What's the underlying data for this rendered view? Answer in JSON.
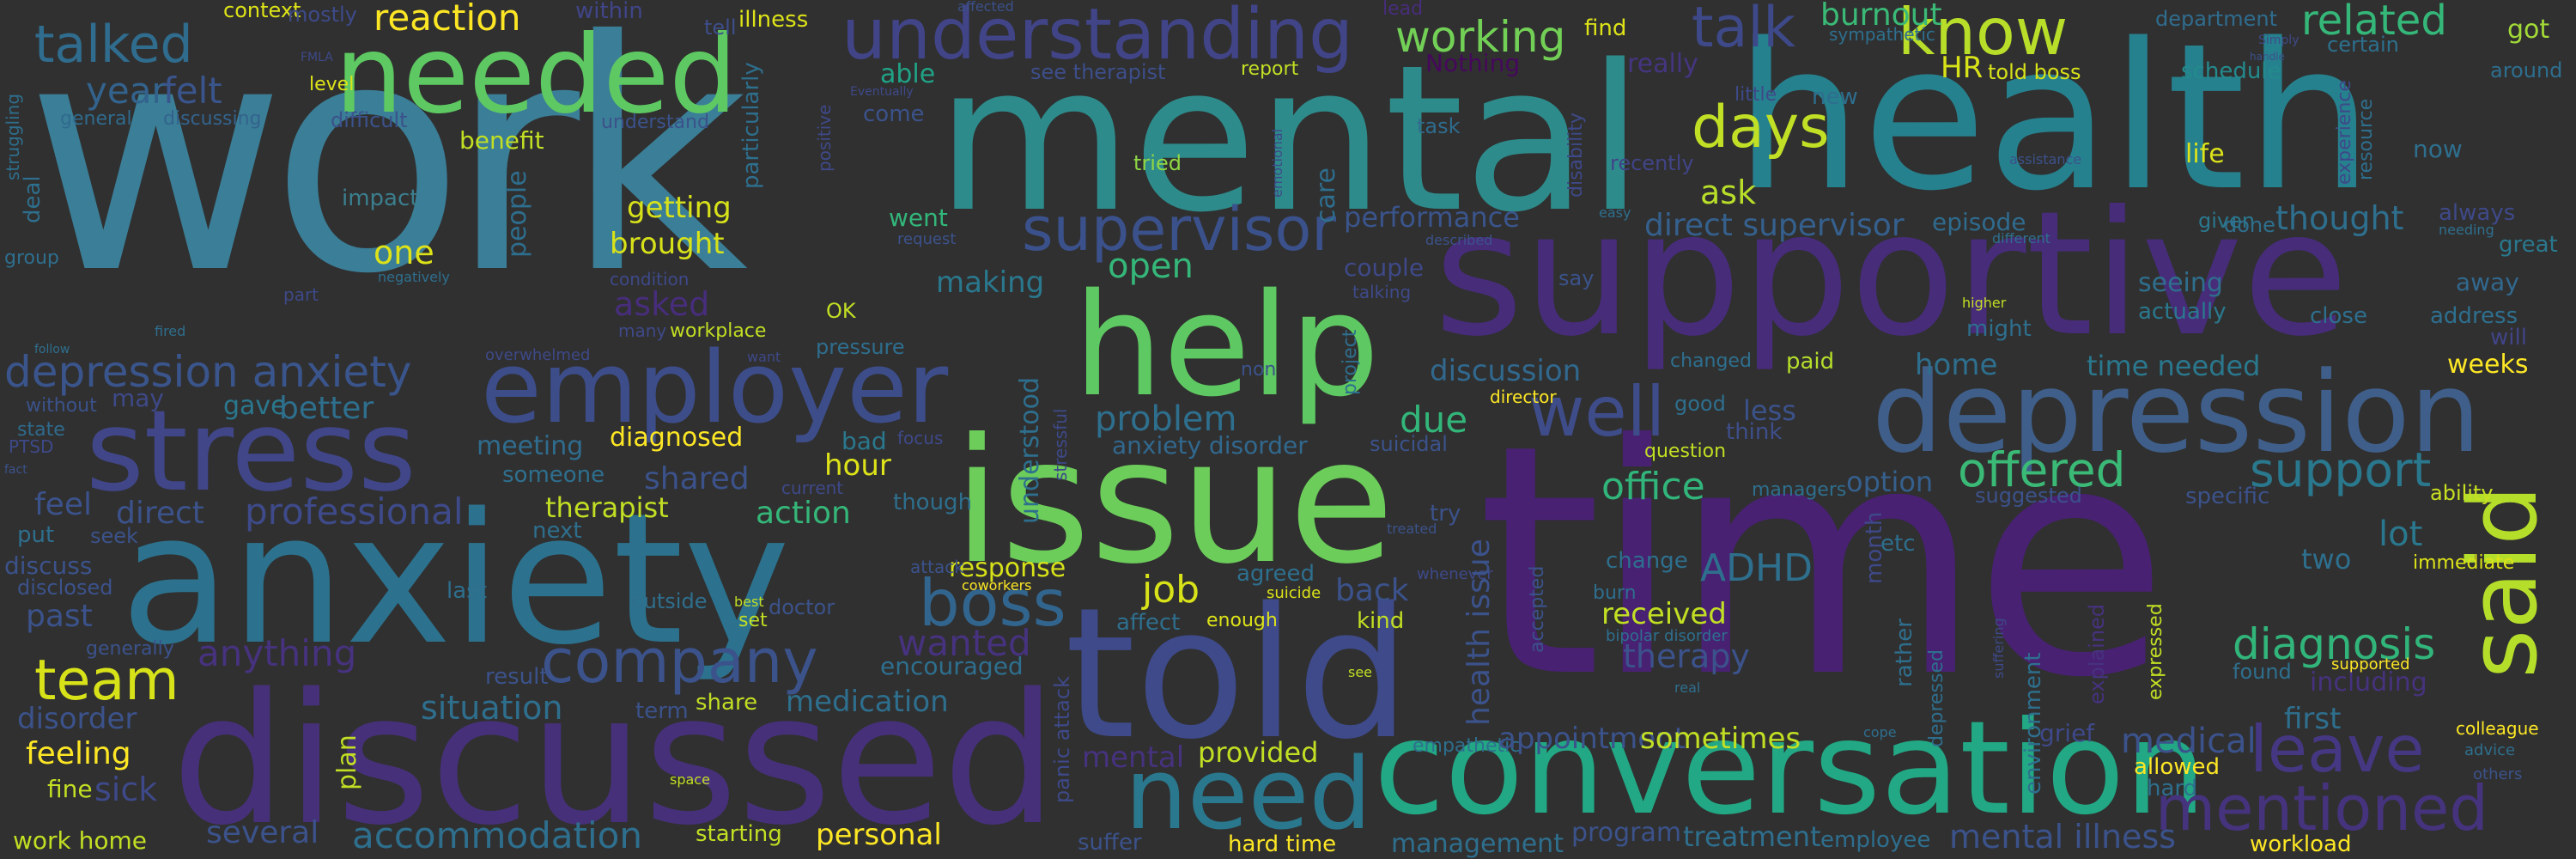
{
  "word_cloud": {
    "background": "#303030",
    "words": [
      {
        "text": "work",
        "color": "#3b7e97"
      },
      {
        "text": "mental",
        "color": "#2e8b8b"
      },
      {
        "text": "health",
        "color": "#26818e"
      },
      {
        "text": "time",
        "color": "#482173"
      },
      {
        "text": "supportive",
        "color": "#472c7a"
      },
      {
        "text": "anxiety",
        "color": "#2c728e"
      },
      {
        "text": "discussed",
        "color": "#46307a"
      },
      {
        "text": "told",
        "color": "#3e4a89"
      },
      {
        "text": "issue",
        "color": "#6ccd5a"
      },
      {
        "text": "conversation",
        "color": "#22a884"
      },
      {
        "text": "depression",
        "color": "#3f5f8a"
      },
      {
        "text": "help",
        "color": "#5ec962"
      },
      {
        "text": "employer",
        "color": "#3d4d8a"
      },
      {
        "text": "stress",
        "color": "#404688"
      },
      {
        "text": "needed",
        "color": "#5ec962"
      },
      {
        "text": "understanding",
        "color": "#414487"
      },
      {
        "text": "need",
        "color": "#2a788e"
      },
      {
        "text": "said",
        "color": "#b5de2b"
      },
      {
        "text": "boss",
        "color": "#32658e"
      },
      {
        "text": "company",
        "color": "#3b528b"
      },
      {
        "text": "well",
        "color": "#3e4c8a"
      },
      {
        "text": "supervisor",
        "color": "#3b518b"
      },
      {
        "text": "know",
        "color": "#b8de29"
      },
      {
        "text": "talk",
        "color": "#3e4989"
      },
      {
        "text": "mentioned",
        "color": "#46337e"
      },
      {
        "text": "leave",
        "color": "#453781"
      },
      {
        "text": "team",
        "color": "#d8e219"
      },
      {
        "text": "days",
        "color": "#c0df25"
      },
      {
        "text": "offered",
        "color": "#3aba76"
      },
      {
        "text": "support",
        "color": "#2a788e"
      },
      {
        "text": "diagnosis",
        "color": "#31b57b"
      },
      {
        "text": "talked",
        "color": "#2f6c8e"
      },
      {
        "text": "working",
        "color": "#73d056"
      },
      {
        "text": "related",
        "color": "#35b779"
      },
      {
        "text": "reaction",
        "color": "#fde725"
      },
      {
        "text": "year",
        "color": "#33638d"
      },
      {
        "text": "felt",
        "color": "#3a548c"
      },
      {
        "text": "context",
        "color": "#dde318"
      },
      {
        "text": "mostly",
        "color": "#3e4a89"
      },
      {
        "text": "within",
        "color": "#404588"
      },
      {
        "text": "tell",
        "color": "#3d4e8a"
      },
      {
        "text": "illness",
        "color": "#dde318"
      },
      {
        "text": "affected",
        "color": "#3b518b"
      },
      {
        "text": "lead",
        "color": "#472d7b"
      },
      {
        "text": "department",
        "color": "#2f6c8e"
      },
      {
        "text": "got",
        "color": "#a2da37"
      },
      {
        "text": "around",
        "color": "#2e6e8e"
      },
      {
        "text": "burnout",
        "color": "#3aba76"
      },
      {
        "text": "sympathetic",
        "color": "#2e6f8e"
      },
      {
        "text": "Simply",
        "color": "#3e4a89"
      },
      {
        "text": "find",
        "color": "#dde318"
      },
      {
        "text": "really",
        "color": "#453581"
      },
      {
        "text": "certain",
        "color": "#2d708e"
      },
      {
        "text": "able",
        "color": "#20a386"
      },
      {
        "text": "see therapist",
        "color": "#3d4e8a"
      },
      {
        "text": "report",
        "color": "#c2df23"
      },
      {
        "text": "Nothing",
        "color": "#46085c"
      },
      {
        "text": "HR",
        "color": "#d8e219"
      },
      {
        "text": "told boss",
        "color": "#d8e219"
      },
      {
        "text": "schedule",
        "color": "#238a8d"
      },
      {
        "text": "general",
        "color": "#2f6b8e"
      },
      {
        "text": "discussing",
        "color": "#33638d"
      },
      {
        "text": "difficult",
        "color": "#3b528b"
      },
      {
        "text": "come",
        "color": "#3b528b"
      },
      {
        "text": "Eventually",
        "color": "#3e4989"
      },
      {
        "text": "understand",
        "color": "#3b528b"
      },
      {
        "text": "new",
        "color": "#2e6e8e"
      },
      {
        "text": "little",
        "color": "#3e4a89"
      },
      {
        "text": "benefit",
        "color": "#c2df23"
      },
      {
        "text": "tried",
        "color": "#8fd744"
      },
      {
        "text": "task",
        "color": "#2f6c8e"
      },
      {
        "text": "recently",
        "color": "#414487"
      },
      {
        "text": "life",
        "color": "#dde318"
      },
      {
        "text": "now",
        "color": "#2e6f8e"
      },
      {
        "text": "people",
        "color": "#2e6e8e"
      },
      {
        "text": "care",
        "color": "#2e6e8e"
      },
      {
        "text": "impact",
        "color": "#3b7f8f"
      },
      {
        "text": "getting",
        "color": "#d8e219"
      },
      {
        "text": "went",
        "color": "#32b67a"
      },
      {
        "text": "ask",
        "color": "#b8de29"
      },
      {
        "text": "performance",
        "color": "#3a548c"
      },
      {
        "text": "direct supervisor",
        "color": "#35608d"
      },
      {
        "text": "episode",
        "color": "#2f6b8e"
      },
      {
        "text": "thought",
        "color": "#2e6f8e"
      },
      {
        "text": "given",
        "color": "#2a788e"
      },
      {
        "text": "done",
        "color": "#2e6f8e"
      },
      {
        "text": "always",
        "color": "#3e4989"
      },
      {
        "text": "great",
        "color": "#2a788e"
      },
      {
        "text": "one",
        "color": "#dde318"
      },
      {
        "text": "brought",
        "color": "#d8e219"
      },
      {
        "text": "asked",
        "color": "#472d7b"
      },
      {
        "text": "open",
        "color": "#35b779"
      },
      {
        "text": "making",
        "color": "#2a788e"
      },
      {
        "text": "couple",
        "color": "#3e4989"
      },
      {
        "text": "talking",
        "color": "#3e4a89"
      },
      {
        "text": "say",
        "color": "#3b528b"
      },
      {
        "text": "seeing",
        "color": "#2e6f8e"
      },
      {
        "text": "actually",
        "color": "#2a788e"
      },
      {
        "text": "away",
        "color": "#31688e"
      },
      {
        "text": "address",
        "color": "#2e6f8e"
      },
      {
        "text": "will",
        "color": "#414487"
      },
      {
        "text": "workplace",
        "color": "#c2df23"
      },
      {
        "text": "OK",
        "color": "#c2df23"
      },
      {
        "text": "pressure",
        "color": "#2e6e8e"
      },
      {
        "text": "depression anxiety",
        "color": "#3a548c"
      },
      {
        "text": "gave",
        "color": "#2a788e"
      },
      {
        "text": "better",
        "color": "#2e6f8e"
      },
      {
        "text": "may",
        "color": "#3e4989"
      },
      {
        "text": "without",
        "color": "#3b528b"
      },
      {
        "text": "state",
        "color": "#2f6b8e"
      },
      {
        "text": "meeting",
        "color": "#2f6c8e"
      },
      {
        "text": "diagnosed",
        "color": "#fde725"
      },
      {
        "text": "problem",
        "color": "#2e6f8e"
      },
      {
        "text": "anxiety disorder",
        "color": "#31688e"
      },
      {
        "text": "due",
        "color": "#32b67a"
      },
      {
        "text": "discussion",
        "color": "#31688e"
      },
      {
        "text": "director",
        "color": "#fde725"
      },
      {
        "text": "paid",
        "color": "#b5de2b"
      },
      {
        "text": "home",
        "color": "#2e6f8e"
      },
      {
        "text": "time needed",
        "color": "#2a788e"
      },
      {
        "text": "weeks",
        "color": "#fde725"
      },
      {
        "text": "less",
        "color": "#3b528b"
      },
      {
        "text": "think",
        "color": "#3d4e8a"
      },
      {
        "text": "good",
        "color": "#2e6f8e"
      },
      {
        "text": "changed",
        "color": "#2e6f8e"
      },
      {
        "text": "office",
        "color": "#31b57b"
      },
      {
        "text": "option",
        "color": "#35608d"
      },
      {
        "text": "managers",
        "color": "#2e6f8e"
      },
      {
        "text": "suggested",
        "color": "#3b528b"
      },
      {
        "text": "ability",
        "color": "#c8e020"
      },
      {
        "text": "lot",
        "color": "#2a788e"
      },
      {
        "text": "immediate",
        "color": "#dde318"
      },
      {
        "text": "feel",
        "color": "#3b528b"
      },
      {
        "text": "direct",
        "color": "#3b528b"
      },
      {
        "text": "professional",
        "color": "#3e4a89"
      },
      {
        "text": "someone",
        "color": "#2e6f8e"
      },
      {
        "text": "shared",
        "color": "#3b528b"
      },
      {
        "text": "therapist",
        "color": "#c2df23"
      },
      {
        "text": "action",
        "color": "#35b779"
      },
      {
        "text": "hour",
        "color": "#dde318"
      },
      {
        "text": "bad",
        "color": "#2a788e"
      },
      {
        "text": "focus",
        "color": "#3e4989"
      },
      {
        "text": "suicidal",
        "color": "#3b528b"
      },
      {
        "text": "try",
        "color": "#3b528b"
      },
      {
        "text": "question",
        "color": "#c2df23"
      },
      {
        "text": "put",
        "color": "#2e6f8e"
      },
      {
        "text": "seek",
        "color": "#3b528b"
      },
      {
        "text": "discuss",
        "color": "#3b528b"
      },
      {
        "text": "next",
        "color": "#2e6f8e"
      },
      {
        "text": "current",
        "color": "#3e4989"
      },
      {
        "text": "though",
        "color": "#2e6f8e"
      },
      {
        "text": "response",
        "color": "#d8e219"
      },
      {
        "text": "job",
        "color": "#d8e219"
      },
      {
        "text": "agreed",
        "color": "#2e6f8e"
      },
      {
        "text": "ADHD",
        "color": "#2e6f8e"
      },
      {
        "text": "change",
        "color": "#2e6f8e"
      },
      {
        "text": "etc",
        "color": "#2e6f8e"
      },
      {
        "text": "received",
        "color": "#c2df23"
      },
      {
        "text": "two",
        "color": "#2e6f8e"
      },
      {
        "text": "disclosed",
        "color": "#3b528b"
      },
      {
        "text": "past",
        "color": "#3b528b"
      },
      {
        "text": "last",
        "color": "#2e6f8e"
      },
      {
        "text": "outside",
        "color": "#2e6f8e"
      },
      {
        "text": "doctor",
        "color": "#3b528b"
      },
      {
        "text": "attack",
        "color": "#3b528b"
      },
      {
        "text": "coworkers",
        "color": "#fde725"
      },
      {
        "text": "suicide",
        "color": "#dde318"
      },
      {
        "text": "enough",
        "color": "#dde318"
      },
      {
        "text": "affect",
        "color": "#2e6f8e"
      },
      {
        "text": "kind",
        "color": "#c2df23"
      },
      {
        "text": "back",
        "color": "#3b528b"
      },
      {
        "text": "whenever",
        "color": "#3e4989"
      },
      {
        "text": "bipolar disorder",
        "color": "#2e6f8e"
      },
      {
        "text": "burn",
        "color": "#2e6f8e"
      },
      {
        "text": "therapy",
        "color": "#3b528b"
      },
      {
        "text": "anything",
        "color": "#46327e"
      },
      {
        "text": "wanted",
        "color": "#46327e"
      },
      {
        "text": "encouraged",
        "color": "#2e6f8e"
      },
      {
        "text": "medication",
        "color": "#2e6f8e"
      },
      {
        "text": "situation",
        "color": "#2e6f8e"
      },
      {
        "text": "result",
        "color": "#3b528b"
      },
      {
        "text": "term",
        "color": "#3b528b"
      },
      {
        "text": "share",
        "color": "#c2df23"
      },
      {
        "text": "generally",
        "color": "#3b528b"
      },
      {
        "text": "disorder",
        "color": "#3b528b"
      },
      {
        "text": "feeling",
        "color": "#fde725"
      },
      {
        "text": "sick",
        "color": "#3e4989"
      },
      {
        "text": "fine",
        "color": "#c2df23"
      },
      {
        "text": "work home",
        "color": "#c2df23"
      },
      {
        "text": "several",
        "color": "#3b528b"
      },
      {
        "text": "accommodation",
        "color": "#2e6f8e"
      },
      {
        "text": "starting",
        "color": "#c2df23"
      },
      {
        "text": "personal",
        "color": "#fde725"
      },
      {
        "text": "suffer",
        "color": "#3b528b"
      },
      {
        "text": "mental",
        "color": "#46327e"
      },
      {
        "text": "provided",
        "color": "#c2df23"
      },
      {
        "text": "hard time",
        "color": "#fde725"
      },
      {
        "text": "empathetic",
        "color": "#2e6f8e"
      },
      {
        "text": "management",
        "color": "#2e6f8e"
      },
      {
        "text": "program",
        "color": "#3b528b"
      },
      {
        "text": "appointment",
        "color": "#3b528b"
      },
      {
        "text": "sometimes",
        "color": "#c2df23"
      },
      {
        "text": "treatment",
        "color": "#2e6f8e"
      },
      {
        "text": "employee",
        "color": "#2e6f8e"
      },
      {
        "text": "mental illness",
        "color": "#3b528b"
      },
      {
        "text": "medical",
        "color": "#3b528b"
      },
      {
        "text": "allowed",
        "color": "#fde725"
      },
      {
        "text": "hard",
        "color": "#2e6f8e"
      },
      {
        "text": "workload",
        "color": "#fde725"
      },
      {
        "text": "first",
        "color": "#2e6f8e"
      },
      {
        "text": "found",
        "color": "#2e6f8e"
      },
      {
        "text": "including",
        "color": "#46327e"
      },
      {
        "text": "colleague",
        "color": "#fde725"
      },
      {
        "text": "advice",
        "color": "#2e6f8e"
      },
      {
        "text": "others",
        "color": "#3b528b"
      },
      {
        "text": "supported",
        "color": "#fde725"
      },
      {
        "text": "level",
        "color": "#dde318"
      },
      {
        "text": "FMLA",
        "color": "#3e4989"
      },
      {
        "text": "deal",
        "color": "#2e6f8e"
      },
      {
        "text": "struggling",
        "color": "#2e6f8e"
      },
      {
        "text": "group",
        "color": "#2e6f8e"
      },
      {
        "text": "fired",
        "color": "#2e6f8e"
      },
      {
        "text": "follow",
        "color": "#2e6f8e"
      },
      {
        "text": "PTSD",
        "color": "#3e4989"
      },
      {
        "text": "fact",
        "color": "#3b528b"
      },
      {
        "text": "condition",
        "color": "#3e4989"
      },
      {
        "text": "negatively",
        "color": "#2e6f8e"
      },
      {
        "text": "part",
        "color": "#3e4989"
      },
      {
        "text": "many",
        "color": "#3e4989"
      },
      {
        "text": "overwhelmed",
        "color": "#3e4989"
      },
      {
        "text": "want",
        "color": "#3e4989"
      },
      {
        "text": "non",
        "color": "#3b528b"
      },
      {
        "text": "higher",
        "color": "#c2df23"
      },
      {
        "text": "might",
        "color": "#2e6f8e"
      },
      {
        "text": "close",
        "color": "#2e6f8e"
      },
      {
        "text": "best",
        "color": "#c2df23"
      },
      {
        "text": "set",
        "color": "#c2df23"
      },
      {
        "text": "space",
        "color": "#c2df23"
      },
      {
        "text": "cope",
        "color": "#2e6f8e"
      },
      {
        "text": "real",
        "color": "#2e6f8e"
      },
      {
        "text": "see",
        "color": "#c2df23"
      },
      {
        "text": "treated",
        "color": "#3b528b"
      },
      {
        "text": "easy",
        "color": "#2e6f8e"
      },
      {
        "text": "described",
        "color": "#3b528b"
      },
      {
        "text": "request",
        "color": "#3b528b"
      },
      {
        "text": "different",
        "color": "#2e6f8e"
      },
      {
        "text": "needing",
        "color": "#2e6f8e"
      },
      {
        "text": "assistance",
        "color": "#3b528b"
      },
      {
        "text": "handle",
        "color": "#3b528b"
      },
      {
        "text": "understood",
        "color": "#2e6f8e"
      },
      {
        "text": "stressful",
        "color": "#3e4989"
      },
      {
        "text": "panic attack",
        "color": "#3e4989"
      },
      {
        "text": "health issue",
        "color": "#3b528b"
      },
      {
        "text": "month",
        "color": "#3e4989"
      },
      {
        "text": "rather",
        "color": "#2e6f8e"
      },
      {
        "text": "depressed",
        "color": "#2e6f8e"
      },
      {
        "text": "environment",
        "color": "#2e6f8e"
      },
      {
        "text": "explained",
        "color": "#46327e"
      },
      {
        "text": "expressed",
        "color": "#c2df23"
      },
      {
        "text": "suffering",
        "color": "#3e4989"
      },
      {
        "text": "grief",
        "color": "#3e4989"
      },
      {
        "text": "plan",
        "color": "#c2df23"
      },
      {
        "text": "accepted",
        "color": "#3b528b"
      },
      {
        "text": "project",
        "color": "#2e6f8e"
      },
      {
        "text": "positive",
        "color": "#3e4989"
      },
      {
        "text": "particularly",
        "color": "#2e6f8e"
      },
      {
        "text": "emotional",
        "color": "#3e4989"
      },
      {
        "text": "disability",
        "color": "#3e4989"
      },
      {
        "text": "experience",
        "color": "#3e4989"
      },
      {
        "text": "resource",
        "color": "#2e6f8e"
      },
      {
        "text": "specific",
        "color": "#3b528b"
      }
    ]
  }
}
